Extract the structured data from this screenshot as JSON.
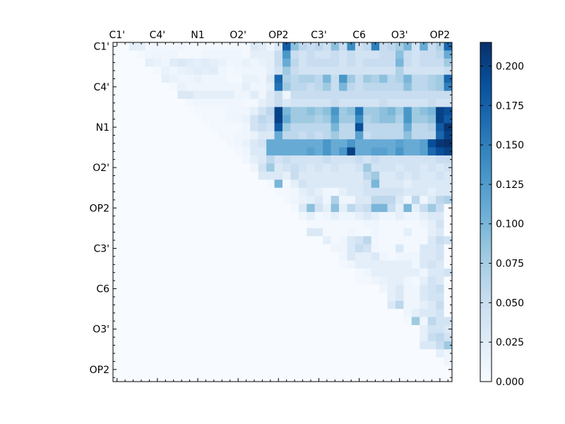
{
  "chart_data": {
    "type": "heatmap",
    "title": "",
    "xlabel": "",
    "ylabel": "",
    "n": 42,
    "tick_labels": [
      "C1'",
      "C4'",
      "N1",
      "O2'",
      "OP2",
      "C3'",
      "C6",
      "O3'",
      "OP2"
    ],
    "tick_label_indices": [
      0,
      5,
      10,
      15,
      20,
      25,
      30,
      35,
      40
    ],
    "colormap": "Blues",
    "colormap_stops": [
      "#f7fbff",
      "#deebf7",
      "#c6dbef",
      "#9ecae1",
      "#6baed6",
      "#4292c6",
      "#2171b5",
      "#08519c",
      "#08306b"
    ],
    "vmin": 0.0,
    "vmax": 0.215,
    "colorbar_ticks": [
      "0.000",
      "0.025",
      "0.050",
      "0.075",
      "0.100",
      "0.125",
      "0.150",
      "0.175",
      "0.200"
    ],
    "colorbar_tick_values": [
      0.0,
      0.025,
      0.05,
      0.075,
      0.1,
      0.125,
      0.15,
      0.175,
      0.2
    ],
    "note_values": "upper-triangular matrix; values row-major per row (row index, starting column, values)",
    "rows": [
      {
        "row": 0,
        "start": 2,
        "values": [
          0.02,
          0.02,
          0.005,
          0.008,
          0.005,
          0.005,
          0.008,
          0.005,
          0.005,
          0.005,
          0.005,
          0.005,
          0.005,
          0.005,
          0.005,
          0.03,
          0.025,
          0.01,
          0.03,
          0.18,
          0.09,
          0.06,
          0.05,
          0.06,
          0.045,
          0.09,
          0.05,
          0.14,
          0.045,
          0.055,
          0.15,
          0.05,
          0.06,
          0.075,
          0.1,
          0.04,
          0.11,
          0.05,
          0.07,
          0.17,
          0.14,
          0.14
        ]
      },
      {
        "row": 1,
        "start": 3,
        "values": [
          0.005,
          0.008,
          0.01,
          0.008,
          0.01,
          0.005,
          0.005,
          0.005,
          0.01,
          0.008,
          0.01,
          0.01,
          0.008,
          0.005,
          0.02,
          0.02,
          0.02,
          0.05,
          0.13,
          0.05,
          0.04,
          0.05,
          0.04,
          0.04,
          0.05,
          0.04,
          0.05,
          0.04,
          0.04,
          0.04,
          0.05,
          0.05,
          0.09,
          0.05,
          0.04,
          0.05,
          0.05,
          0.06,
          0.11,
          0.12,
          0.09
        ]
      },
      {
        "row": 2,
        "start": 4,
        "values": [
          0.02,
          0.015,
          0.01,
          0.025,
          0.03,
          0.025,
          0.02,
          0.025,
          0.02,
          0.015,
          0.008,
          0.01,
          0.015,
          0.01,
          0.015,
          0.02,
          0.05,
          0.11,
          0.06,
          0.04,
          0.05,
          0.05,
          0.05,
          0.05,
          0.04,
          0.05,
          0.04,
          0.05,
          0.05,
          0.05,
          0.05,
          0.1,
          0.05,
          0.04,
          0.05,
          0.05,
          0.05,
          0.08,
          0.11,
          0.09
        ]
      },
      {
        "row": 3,
        "start": 5,
        "values": [
          0.005,
          0.015,
          0.01,
          0.015,
          0.02,
          0.025,
          0.02,
          0.025,
          0.01,
          0.005,
          0.008,
          0.01,
          0.01,
          0.01,
          0.02,
          0.04,
          0.08,
          0.05,
          0.04,
          0.04,
          0.04,
          0.04,
          0.04,
          0.04,
          0.04,
          0.04,
          0.04,
          0.04,
          0.04,
          0.04,
          0.07,
          0.04,
          0.04,
          0.04,
          0.04,
          0.04,
          0.05,
          0.05,
          0.06
        ]
      },
      {
        "row": 4,
        "start": 6,
        "values": [
          0.02,
          0.015,
          0.01,
          0.01,
          0.015,
          0.01,
          0.01,
          0.01,
          0.005,
          0.005,
          0.015,
          0.015,
          0.01,
          0.03,
          0.17,
          0.07,
          0.06,
          0.07,
          0.07,
          0.06,
          0.1,
          0.05,
          0.13,
          0.08,
          0.05,
          0.08,
          0.07,
          0.09,
          0.06,
          0.07,
          0.1,
          0.06,
          0.06,
          0.07,
          0.08,
          0.17,
          0.14,
          0.12
        ]
      },
      {
        "row": 5,
        "start": 7,
        "values": [
          0.005,
          0.015,
          0.01,
          0.01,
          0.01,
          0.01,
          0.01,
          0.01,
          0.01,
          0.02,
          0.01,
          0.01,
          0.02,
          0.16,
          0.08,
          0.06,
          0.06,
          0.05,
          0.06,
          0.08,
          0.05,
          0.1,
          0.06,
          0.05,
          0.06,
          0.06,
          0.06,
          0.06,
          0.06,
          0.09,
          0.06,
          0.06,
          0.07,
          0.08,
          0.15,
          0.12,
          0.11
        ]
      },
      {
        "row": 6,
        "start": 8,
        "values": [
          0.03,
          0.03,
          0.02,
          0.02,
          0.02,
          0.02,
          0.02,
          0.01,
          0.01,
          0.025,
          0.01,
          0.03,
          0.05,
          0.01,
          0.05,
          0.05,
          0.05,
          0.05,
          0.05,
          0.05,
          0.05,
          0.05,
          0.05,
          0.05,
          0.05,
          0.05,
          0.05,
          0.05,
          0.05,
          0.05,
          0.05,
          0.05,
          0.05,
          0.05,
          0.04,
          0.04
        ]
      },
      {
        "row": 7,
        "start": 9,
        "values": [
          0.005,
          0.008,
          0.008,
          0.008,
          0.008,
          0.008,
          0.008,
          0.005,
          0.005,
          0.02,
          0.03,
          0.05,
          0.03,
          0.04,
          0.04,
          0.04,
          0.04,
          0.04,
          0.05,
          0.04,
          0.04,
          0.04,
          0.04,
          0.04,
          0.05,
          0.04,
          0.04,
          0.04,
          0.04,
          0.04,
          0.05,
          0.04,
          0.04,
          0.04,
          0.04
        ]
      },
      {
        "row": 8,
        "start": 10,
        "values": [
          0.005,
          0.005,
          0.005,
          0.005,
          0.008,
          0.008,
          0.01,
          0.02,
          0.04,
          0.06,
          0.2,
          0.1,
          0.08,
          0.08,
          0.09,
          0.08,
          0.09,
          0.13,
          0.08,
          0.09,
          0.16,
          0.08,
          0.08,
          0.09,
          0.1,
          0.08,
          0.13,
          0.08,
          0.09,
          0.1,
          0.2,
          0.19,
          0.2,
          0.2
        ]
      },
      {
        "row": 9,
        "start": 11,
        "values": [
          0.005,
          0.005,
          0.005,
          0.008,
          0.01,
          0.015,
          0.04,
          0.06,
          0.05,
          0.2,
          0.11,
          0.08,
          0.08,
          0.08,
          0.07,
          0.08,
          0.12,
          0.08,
          0.08,
          0.14,
          0.07,
          0.08,
          0.09,
          0.09,
          0.07,
          0.13,
          0.08,
          0.08,
          0.09,
          0.2,
          0.18,
          0.18
        ]
      },
      {
        "row": 10,
        "start": 12,
        "values": [
          0.005,
          0.005,
          0.005,
          0.005,
          0.01,
          0.04,
          0.05,
          0.04,
          0.18,
          0.08,
          0.06,
          0.06,
          0.06,
          0.06,
          0.06,
          0.1,
          0.06,
          0.06,
          0.19,
          0.06,
          0.06,
          0.06,
          0.06,
          0.06,
          0.11,
          0.06,
          0.06,
          0.07,
          0.18,
          0.21,
          0.18
        ]
      },
      {
        "row": 11,
        "start": 13,
        "values": [
          0.005,
          0.005,
          0.008,
          0.01,
          0.015,
          0.03,
          0.03,
          0.11,
          0.06,
          0.06,
          0.05,
          0.06,
          0.05,
          0.06,
          0.08,
          0.06,
          0.06,
          0.12,
          0.05,
          0.06,
          0.06,
          0.06,
          0.06,
          0.09,
          0.06,
          0.06,
          0.06,
          0.17,
          0.2,
          0.19
        ]
      },
      {
        "row": 12,
        "start": 14,
        "values": [
          0.005,
          0.008,
          0.015,
          0.03,
          0.04,
          0.11,
          0.11,
          0.11,
          0.11,
          0.11,
          0.11,
          0.11,
          0.13,
          0.11,
          0.11,
          0.13,
          0.11,
          0.11,
          0.11,
          0.11,
          0.11,
          0.12,
          0.11,
          0.11,
          0.12,
          0.19,
          0.21,
          0.215
        ]
      },
      {
        "row": 13,
        "start": 15,
        "values": [
          0.005,
          0.01,
          0.03,
          0.03,
          0.11,
          0.11,
          0.11,
          0.11,
          0.11,
          0.12,
          0.11,
          0.13,
          0.11,
          0.13,
          0.2,
          0.11,
          0.11,
          0.12,
          0.12,
          0.11,
          0.13,
          0.11,
          0.11,
          0.12,
          0.17,
          0.19,
          0.2
        ]
      },
      {
        "row": 14,
        "start": 16,
        "values": [
          0.008,
          0.02,
          0.03,
          0.06,
          0.04,
          0.05,
          0.04,
          0.04,
          0.04,
          0.04,
          0.05,
          0.04,
          0.04,
          0.04,
          0.05,
          0.04,
          0.05,
          0.04,
          0.04,
          0.04,
          0.04,
          0.04,
          0.04,
          0.04,
          0.05,
          0.05
        ]
      },
      {
        "row": 15,
        "start": 17,
        "values": [
          0.01,
          0.04,
          0.08,
          0.03,
          0.04,
          0.05,
          0.04,
          0.03,
          0.04,
          0.03,
          0.04,
          0.03,
          0.03,
          0.04,
          0.08,
          0.04,
          0.04,
          0.04,
          0.03,
          0.04,
          0.04,
          0.03,
          0.04,
          0.03,
          0.04
        ]
      },
      {
        "row": 16,
        "start": 18,
        "values": [
          0.03,
          0.03,
          0.03,
          0.02,
          0.05,
          0.03,
          0.03,
          0.03,
          0.03,
          0.03,
          0.03,
          0.03,
          0.03,
          0.06,
          0.08,
          0.03,
          0.03,
          0.04,
          0.03,
          0.04,
          0.03,
          0.03,
          0.04,
          0.03
        ]
      },
      {
        "row": 17,
        "start": 19,
        "values": [
          0.005,
          0.1,
          0.005,
          0.02,
          0.04,
          0.03,
          0.03,
          0.03,
          0.03,
          0.03,
          0.03,
          0.03,
          0.04,
          0.1,
          0.03,
          0.03,
          0.03,
          0.02,
          0.03,
          0.03,
          0.03,
          0.03,
          0.03
        ]
      },
      {
        "row": 18,
        "start": 20,
        "values": [
          0.005,
          0.005,
          0.008,
          0.02,
          0.03,
          0.02,
          0.01,
          0.008,
          0.02,
          0.03,
          0.03,
          0.04,
          0.04,
          0.04,
          0.04,
          0.04,
          0.03,
          0.03,
          0.03,
          0.02,
          0.03,
          0.03
        ]
      },
      {
        "row": 19,
        "start": 21,
        "values": [
          0.005,
          0.01,
          0.015,
          0.02,
          0.03,
          0.01,
          0.07,
          0.01,
          0.01,
          0.03,
          0.03,
          0.06,
          0.06,
          0.06,
          0.03,
          0.01,
          0.06,
          0.01,
          0.03,
          0.06,
          0.07
        ]
      },
      {
        "row": 20,
        "start": 22,
        "values": [
          0.005,
          0.03,
          0.09,
          0.04,
          0.02,
          0.09,
          0.02,
          0.06,
          0.04,
          0.05,
          0.1,
          0.1,
          0.05,
          0.02,
          0.1,
          0.02,
          0.05,
          0.08,
          0.05
        ]
      },
      {
        "row": 21,
        "start": 23,
        "values": [
          0.01,
          0.02,
          0.005,
          0.01,
          0.02,
          0.01,
          0.01,
          0.02,
          0.03,
          0.02,
          0.01,
          0.01,
          0.02,
          0.01,
          0.01,
          0.02,
          0.03,
          0.03
        ]
      },
      {
        "row": 22,
        "start": 24,
        "values": [
          0.005,
          0.005,
          0.005,
          0.005,
          0.005,
          0.005,
          0.005,
          0.01,
          0.01,
          0.005,
          0.005,
          0.005,
          0.005,
          0.005,
          0.01,
          0.02,
          0.04
        ]
      },
      {
        "row": 23,
        "start": 24,
        "values": [
          0.03,
          0.03,
          0.005,
          0.005,
          0.005,
          0.01,
          0.005,
          0.005,
          0.008,
          0.005,
          0.005,
          0.005,
          0.02,
          0.005,
          0.005,
          0.02,
          0.03
        ]
      },
      {
        "row": 24,
        "start": 26,
        "values": [
          0.02,
          0.005,
          0.01,
          0.03,
          0.04,
          0.06,
          0.008,
          0.005,
          0.005,
          0.005,
          0.005,
          0.005,
          0.005,
          0.03,
          0.05,
          0.04
        ]
      },
      {
        "row": 25,
        "start": 27,
        "values": [
          0.01,
          0.01,
          0.03,
          0.05,
          0.04,
          0.008,
          0.005,
          0.005,
          0.03,
          0.005,
          0.005,
          0.03,
          0.03,
          0.04
        ]
      },
      {
        "row": 26,
        "start": 28,
        "values": [
          0.008,
          0.03,
          0.02,
          0.02,
          0.03,
          0.01,
          0.005,
          0.01,
          0.01,
          0.01,
          0.03,
          0.03,
          0.04
        ]
      },
      {
        "row": 27,
        "start": 28,
        "values": [
          0.005,
          0.01,
          0.02,
          0.02,
          0.02,
          0.02,
          0.02,
          0.02,
          0.02,
          0.008,
          0.03,
          0.04,
          0.03
        ]
      },
      {
        "row": 28,
        "start": 30,
        "values": [
          0.005,
          0.01,
          0.02,
          0.02,
          0.02,
          0.02,
          0.02,
          0.02,
          0.01,
          0.03,
          0.03,
          0.04
        ]
      },
      {
        "row": 29,
        "start": 30,
        "values": [
          0.005,
          0.005,
          0.01,
          0.015,
          0.02,
          0.02,
          0.01,
          0.005,
          0.02,
          0.04,
          0.03
        ]
      },
      {
        "row": 30,
        "start": 33,
        "values": [
          0.01,
          0.02,
          0.03,
          0.01,
          0.008,
          0.03,
          0.04,
          0.05
        ]
      },
      {
        "row": 31,
        "start": 34,
        "values": [
          0.02,
          0.03,
          0.01,
          0.01,
          0.03,
          0.04,
          0.04
        ]
      },
      {
        "row": 32,
        "start": 34,
        "values": [
          0.03,
          0.06,
          0.01,
          0.01,
          0.02,
          0.03,
          0.05
        ]
      },
      {
        "row": 33,
        "start": 36,
        "values": [
          0.01,
          0.02,
          0.03,
          0.03,
          0.04
        ]
      },
      {
        "row": 34,
        "start": 36,
        "values": [
          0.005,
          0.08,
          0.01,
          0.06,
          0.04,
          0.04
        ]
      },
      {
        "row": 35,
        "start": 38,
        "values": [
          0.02,
          0.04,
          0.04,
          0.03
        ]
      },
      {
        "row": 36,
        "start": 38,
        "values": [
          0.02,
          0.05,
          0.06,
          0.04
        ]
      },
      {
        "row": 37,
        "start": 38,
        "values": [
          0.03,
          0.03,
          0.05,
          0.08
        ]
      },
      {
        "row": 38,
        "start": 40,
        "values": [
          0.02,
          0.01
        ]
      },
      {
        "row": 39,
        "start": 41,
        "values": [
          0.01
        ]
      }
    ]
  }
}
